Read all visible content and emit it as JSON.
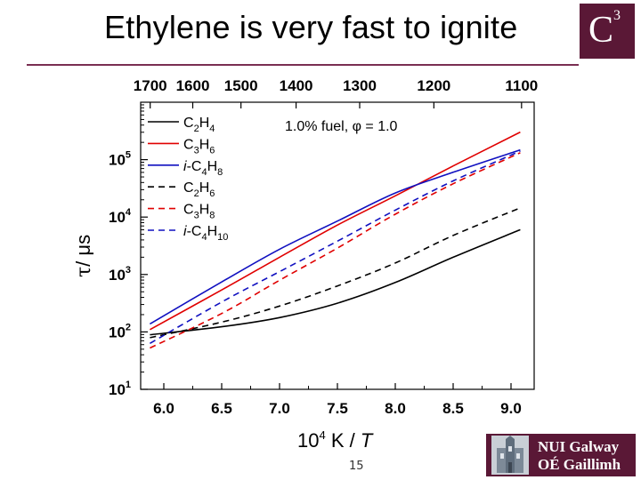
{
  "slide": {
    "title": "Ethylene is very fast to ignite",
    "page_number": "15",
    "logo_letter": "C",
    "logo_superscript": "3",
    "university_line1": "NUI Galway",
    "university_line2": "OÉ Gaillimh",
    "accent_color": "#5a1836"
  },
  "chart_data": {
    "type": "line",
    "annotation": "1.0% fuel, φ = 1.0",
    "xlabel": "10",
    "xlabel_sup": "4",
    "xlabel_rest": " K / ",
    "xlabel_italic": "T",
    "ylabel_tau": "τ",
    "ylabel_rest": "/  μs",
    "xlim": [
      5.8,
      9.2
    ],
    "ylim_log10": [
      1,
      6
    ],
    "x_ticks": [
      "6.0",
      "6.5",
      "7.0",
      "7.5",
      "8.0",
      "8.5",
      "9.0"
    ],
    "x_tick_values": [
      6.0,
      6.5,
      7.0,
      7.5,
      8.0,
      8.5,
      9.0
    ],
    "y_ticks": [
      {
        "base": "10",
        "exp": "1",
        "log": 1
      },
      {
        "base": "10",
        "exp": "2",
        "log": 2
      },
      {
        "base": "10",
        "exp": "3",
        "log": 3
      },
      {
        "base": "10",
        "exp": "4",
        "log": 4
      },
      {
        "base": "10",
        "exp": "5",
        "log": 5
      }
    ],
    "top_axis_ticks": [
      "1700",
      "1600",
      "1500",
      "1400",
      "1300",
      "1200",
      "1100"
    ],
    "top_axis_values_K": [
      1700,
      1600,
      1500,
      1400,
      1300,
      1200,
      1100
    ],
    "series": [
      {
        "name": "C2H4",
        "parts": [
          {
            "t": "C"
          },
          {
            "t": "2",
            "sub": true
          },
          {
            "t": "H"
          },
          {
            "t": "4",
            "sub": true
          }
        ],
        "color": "#000000",
        "dash": false,
        "x": [
          5.88,
          6.5,
          7.0,
          7.5,
          8.0,
          8.5,
          9.08
        ],
        "log_tau": [
          1.95,
          2.09,
          2.25,
          2.5,
          2.86,
          3.3,
          3.78
        ]
      },
      {
        "name": "C3H6",
        "parts": [
          {
            "t": "C"
          },
          {
            "t": "3",
            "sub": true
          },
          {
            "t": "H"
          },
          {
            "t": "6",
            "sub": true
          }
        ],
        "color": "#e00000",
        "dash": false,
        "x": [
          5.88,
          6.5,
          7.0,
          7.5,
          8.0,
          8.5,
          9.08
        ],
        "log_tau": [
          2.04,
          2.73,
          3.3,
          3.86,
          4.37,
          4.89,
          5.48
        ]
      },
      {
        "name": "i-C4H8",
        "parts": [
          {
            "t": "i",
            "it": true
          },
          {
            "t": "-C"
          },
          {
            "t": "4",
            "sub": true
          },
          {
            "t": "H"
          },
          {
            "t": "8",
            "sub": true
          }
        ],
        "color": "#1010c0",
        "dash": false,
        "x": [
          5.88,
          6.5,
          7.0,
          7.5,
          8.0,
          8.5,
          9.08
        ],
        "log_tau": [
          2.14,
          2.87,
          3.44,
          3.93,
          4.42,
          4.78,
          5.17
        ]
      },
      {
        "name": "C2H6",
        "parts": [
          {
            "t": "C"
          },
          {
            "t": "2",
            "sub": true
          },
          {
            "t": "H"
          },
          {
            "t": "6",
            "sub": true
          }
        ],
        "color": "#000000",
        "dash": true,
        "x": [
          5.88,
          6.5,
          7.0,
          7.5,
          8.0,
          8.5,
          9.08
        ],
        "log_tau": [
          1.9,
          2.17,
          2.45,
          2.8,
          3.2,
          3.68,
          4.16
        ]
      },
      {
        "name": "C3H8",
        "parts": [
          {
            "t": "C"
          },
          {
            "t": "3",
            "sub": true
          },
          {
            "t": "H"
          },
          {
            "t": "8",
            "sub": true
          }
        ],
        "color": "#e00000",
        "dash": true,
        "x": [
          5.88,
          6.5,
          7.0,
          7.5,
          8.0,
          8.5,
          9.08
        ],
        "log_tau": [
          1.72,
          2.32,
          2.9,
          3.46,
          4.05,
          4.58,
          5.12
        ]
      },
      {
        "name": "i-C4H10",
        "parts": [
          {
            "t": "i",
            "it": true
          },
          {
            "t": "-C"
          },
          {
            "t": "4",
            "sub": true
          },
          {
            "t": "H"
          },
          {
            "t": "10",
            "sub": true
          }
        ],
        "color": "#1010c0",
        "dash": true,
        "x": [
          5.88,
          6.5,
          7.0,
          7.5,
          8.0,
          8.5,
          9.08
        ],
        "log_tau": [
          1.8,
          2.52,
          3.05,
          3.58,
          4.12,
          4.63,
          5.15
        ]
      }
    ]
  }
}
